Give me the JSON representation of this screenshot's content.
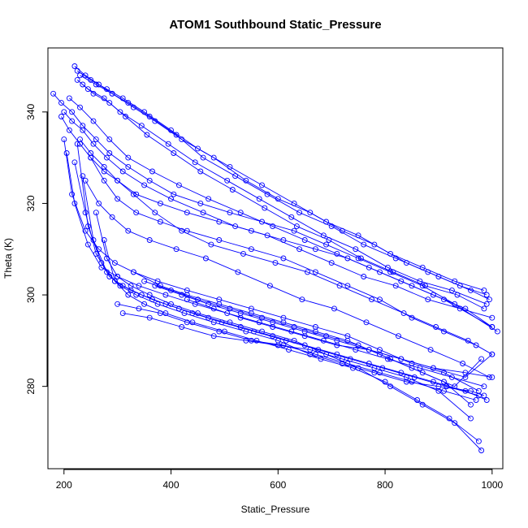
{
  "chart_data": {
    "type": "line",
    "title": "ATOM1 Southbound Static_Pressure",
    "xlabel": "Static_Pressure",
    "ylabel": "Theta (K)",
    "xlim": [
      170,
      1020
    ],
    "ylim": [
      262,
      354
    ],
    "x_ticks": [
      200,
      400,
      600,
      800,
      1000
    ],
    "y_ticks": [
      280,
      300,
      320,
      340
    ],
    "grid": false,
    "legend": "none",
    "marker": "open-circle",
    "series_color": "#0000ff",
    "series": [
      {
        "x": [
          220,
          240,
          265,
          290,
          320,
          360,
          410,
          460,
          520,
          580,
          640,
          700,
          760,
          820,
          880,
          940,
          990
        ],
        "y": [
          350,
          348,
          346,
          344,
          342,
          339,
          335,
          330,
          326,
          322,
          318,
          315,
          311,
          308,
          305,
          302,
          300
        ]
      },
      {
        "x": [
          225,
          250,
          280,
          310,
          350,
          400,
          450,
          510,
          570,
          630,
          690,
          750,
          810,
          870,
          930,
          985
        ],
        "y": [
          349,
          347,
          345,
          343,
          340,
          336,
          332,
          328,
          324,
          320,
          316,
          313,
          309,
          306,
          303,
          301
        ]
      },
      {
        "x": [
          230,
          260,
          290,
          330,
          370,
          420,
          480,
          540,
          600,
          660,
          720,
          780,
          840,
          900,
          960,
          995
        ],
        "y": [
          348,
          346,
          344,
          341,
          338,
          334,
          330,
          325,
          321,
          318,
          314,
          311,
          307,
          304,
          301,
          299
        ]
      },
      {
        "x": [
          225,
          245,
          275,
          305,
          345,
          395,
          445,
          505,
          565,
          625,
          685,
          745,
          805,
          865,
          925,
          990
        ],
        "y": [
          347,
          345,
          343,
          340,
          337,
          333,
          329,
          325,
          321,
          317,
          313,
          310,
          306,
          303,
          301,
          298
        ]
      },
      {
        "x": [
          235,
          255,
          285,
          315,
          355,
          405,
          455,
          515,
          575,
          635,
          695,
          755,
          815,
          875,
          935,
          985
        ],
        "y": [
          346,
          344,
          342,
          339,
          335,
          331,
          327,
          323,
          319,
          315,
          312,
          308,
          305,
          302,
          300,
          297
        ]
      },
      {
        "x": [
          200,
          215,
          235,
          255,
          280,
          310,
          350,
          400,
          460,
          520,
          580,
          640,
          700,
          760,
          820,
          880,
          940,
          1000
        ],
        "y": [
          340,
          338,
          336,
          333,
          330,
          327,
          324,
          321,
          318,
          315,
          313,
          310,
          307,
          304,
          302,
          299,
          297,
          295
        ]
      },
      {
        "x": [
          195,
          210,
          230,
          250,
          275,
          300,
          335,
          380,
          430,
          490,
          550,
          610,
          670,
          730,
          790,
          850,
          910,
          1000
        ],
        "y": [
          339,
          336,
          333,
          330,
          327,
          325,
          322,
          320,
          318,
          316,
          314,
          312,
          310,
          308,
          305,
          302,
          299,
          293
        ]
      },
      {
        "x": [
          180,
          195,
          215,
          235,
          260,
          285,
          320,
          360,
          405,
          455,
          510,
          570,
          630,
          690,
          750,
          810,
          870,
          930,
          1010
        ],
        "y": [
          344,
          342,
          340,
          337,
          334,
          331,
          328,
          325,
          322,
          320,
          318,
          316,
          314,
          311,
          308,
          305,
          302,
          298,
          292
        ]
      },
      {
        "x": [
          210,
          230,
          255,
          285,
          320,
          365,
          415,
          470,
          530,
          590,
          650,
          710,
          770,
          830,
          890,
          950,
          1000
        ],
        "y": [
          343,
          341,
          338,
          334,
          330,
          327,
          324,
          321,
          318,
          315,
          312,
          309,
          306,
          303,
          300,
          297,
          293
        ]
      },
      {
        "x": [
          230,
          250,
          275,
          300,
          330,
          370,
          420,
          475,
          535,
          595,
          655,
          715,
          775,
          835,
          895,
          955,
          1000
        ],
        "y": [
          334,
          331,
          328,
          325,
          322,
          318,
          314,
          311,
          309,
          307,
          305,
          302,
          299,
          296,
          293,
          290,
          287
        ]
      },
      {
        "x": [
          240,
          265,
          290,
          320,
          360,
          410,
          465,
          525,
          585,
          645,
          705,
          765,
          825,
          885,
          945,
          995
        ],
        "y": [
          325,
          320,
          317,
          314,
          312,
          310,
          308,
          305,
          302,
          299,
          297,
          294,
          291,
          288,
          285,
          282
        ]
      },
      {
        "x": [
          250,
          275,
          300,
          335,
          380,
          430,
          490,
          550,
          610,
          670,
          730,
          790,
          850,
          910,
          970
        ],
        "y": [
          330,
          325,
          321,
          318,
          316,
          314,
          312,
          310,
          308,
          305,
          302,
          299,
          295,
          292,
          289
        ]
      },
      {
        "x": [
          200,
          215,
          240,
          265,
          295,
          330,
          375,
          430,
          490,
          550,
          610,
          670,
          730,
          790,
          850,
          910,
          975
        ],
        "y": [
          334,
          322,
          314,
          310,
          307,
          305,
          303,
          301,
          299,
          297,
          295,
          293,
          291,
          288,
          285,
          283,
          279
        ]
      },
      {
        "x": [
          205,
          220,
          245,
          270,
          300,
          340,
          390,
          445,
          505,
          565,
          625,
          685,
          745,
          805,
          865,
          925,
          985
        ],
        "y": [
          331,
          320,
          311,
          306,
          304,
          302,
          300,
          298,
          296,
          294,
          292,
          290,
          288,
          286,
          284,
          282,
          280
        ]
      },
      {
        "x": [
          220,
          240,
          260,
          285,
          310,
          345,
          390,
          440,
          495,
          555,
          615,
          675,
          735,
          795,
          855,
          915,
          975
        ],
        "y": [
          329,
          318,
          309,
          304,
          302,
          300,
          298,
          296,
          294,
          292,
          290,
          288,
          286,
          284,
          282,
          280,
          278
        ]
      },
      {
        "x": [
          225,
          245,
          270,
          295,
          325,
          365,
          415,
          470,
          530,
          590,
          650,
          710,
          770,
          830,
          890,
          950,
          990
        ],
        "y": [
          333,
          315,
          307,
          303,
          301,
          299,
          297,
          295,
          293,
          291,
          289,
          287,
          285,
          283,
          281,
          279,
          277
        ]
      },
      {
        "x": [
          235,
          255,
          280,
          305,
          335,
          375,
          425,
          480,
          540,
          600,
          660,
          720,
          780,
          840,
          900,
          960,
          985
        ],
        "y": [
          326,
          312,
          305,
          302,
          300,
          298,
          296,
          294,
          292,
          290,
          287,
          285,
          283,
          281,
          280,
          279,
          278
        ]
      },
      {
        "x": [
          260,
          280,
          300,
          325,
          360,
          400,
          450,
          510,
          570,
          630,
          690,
          750,
          810,
          870,
          930,
          980
        ],
        "y": [
          318,
          308,
          304,
          302,
          300,
          298,
          296,
          294,
          292,
          290,
          287,
          284,
          280,
          276,
          272,
          266
        ]
      },
      {
        "x": [
          275,
          295,
          320,
          350,
          390,
          440,
          500,
          560,
          620,
          680,
          740,
          800,
          860,
          920,
          975
        ],
        "y": [
          312,
          303,
          300,
          298,
          296,
          294,
          292,
          290,
          288,
          286,
          284,
          281,
          277,
          273,
          268
        ]
      },
      {
        "x": [
          300,
          340,
          380,
          430,
          490,
          550,
          610,
          670,
          730,
          790,
          850,
          910,
          970
        ],
        "y": [
          298,
          297,
          296,
          294,
          292,
          290,
          289,
          287,
          285,
          283,
          281,
          279,
          277
        ]
      },
      {
        "x": [
          310,
          360,
          420,
          480,
          540,
          600,
          660,
          720,
          780,
          840,
          900,
          960
        ],
        "y": [
          296,
          295,
          293,
          291,
          290,
          289,
          288,
          286,
          284,
          282,
          279,
          273
        ]
      },
      {
        "x": [
          330,
          380,
          430,
          490,
          550,
          610,
          670,
          730,
          790,
          850,
          910,
          960
        ],
        "y": [
          305,
          302,
          300,
          298,
          296,
          294,
          292,
          290,
          287,
          284,
          281,
          276
        ]
      },
      {
        "x": [
          350,
          400,
          450,
          510,
          570,
          630,
          690,
          750,
          810,
          870,
          930,
          980
        ],
        "y": [
          303,
          301,
          299,
          297,
          295,
          293,
          291,
          289,
          286,
          283,
          280,
          286
        ]
      },
      {
        "x": [
          370,
          420,
          470,
          530,
          590,
          650,
          710,
          770,
          830,
          890,
          950,
          1000
        ],
        "y": [
          302,
          300,
          298,
          296,
          294,
          292,
          290,
          288,
          286,
          284,
          282,
          287
        ]
      },
      {
        "x": [
          430,
          480,
          530,
          590,
          650,
          710,
          770,
          830,
          890,
          950,
          1000
        ],
        "y": [
          299,
          297,
          295,
          293,
          291,
          289,
          288,
          286,
          284,
          283,
          282
        ]
      }
    ]
  }
}
